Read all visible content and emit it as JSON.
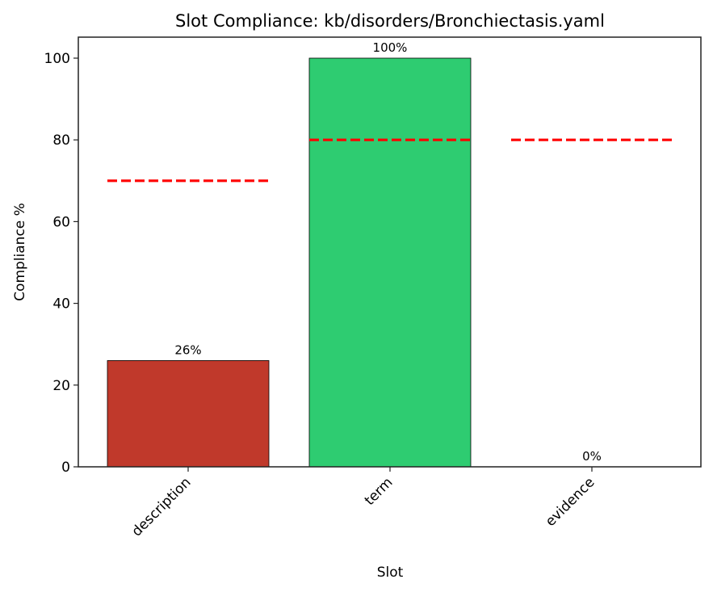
{
  "chart_data": {
    "type": "bar",
    "title": "Slot Compliance: kb/disorders/Bronchiectasis.yaml",
    "xlabel": "Slot",
    "ylabel": "Compliance %",
    "categories": [
      "description",
      "term",
      "evidence"
    ],
    "values": [
      26,
      100,
      0
    ],
    "value_labels": [
      "26%",
      "100%",
      "0%"
    ],
    "bar_colors": [
      "#c0392b",
      "#2ecc71",
      "#c0392b"
    ],
    "thresholds": [
      70,
      80,
      80
    ],
    "threshold_style": {
      "color": "#ff0000",
      "linestyle": "dashed"
    },
    "ylim": [
      0,
      105
    ],
    "yticks": [
      0,
      20,
      40,
      60,
      80,
      100
    ],
    "ytick_labels": [
      "0",
      "20",
      "40",
      "60",
      "80",
      "100"
    ],
    "grid": false,
    "legend": null,
    "xtick_rotation": -45
  }
}
